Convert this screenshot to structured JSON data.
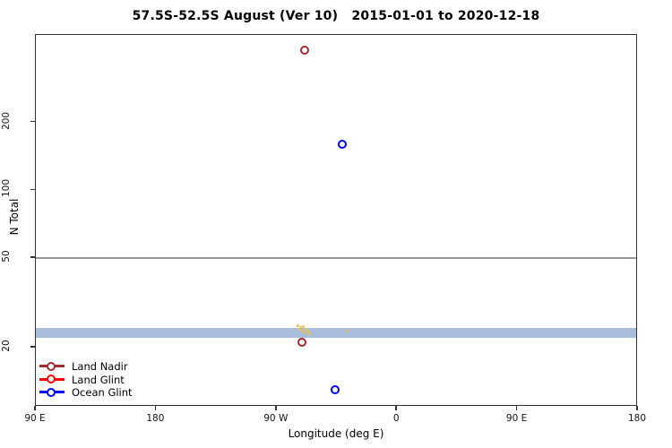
{
  "title": "57.5S-52.5S August (Ver 10)   2015-01-01 to 2020-12-18",
  "legend": {
    "position": "bottom-left",
    "items": [
      {
        "label": "Land Nadir",
        "color": "#A52A2A",
        "marker": "open-circle"
      },
      {
        "label": "Land Glint",
        "color": "#FF0000",
        "marker": "open-circle"
      },
      {
        "label": "Ocean Glint",
        "color": "#0000FF",
        "marker": "open-circle"
      }
    ]
  },
  "chart_data": {
    "type": "scatter",
    "title": "57.5S-52.5S August (Ver 10)   2015-01-01 to 2020-12-18",
    "xlabel": "Longitude (deg E)",
    "ylabel": "N Total",
    "x_axis": {
      "unit": "degrees east, wrapped axis spanning 450 deg",
      "ticks": [
        {
          "deg": 90,
          "label": "90 E"
        },
        {
          "deg": 180,
          "label": "180"
        },
        {
          "deg": 270,
          "label": "90 W"
        },
        {
          "deg": 360,
          "label": "0"
        },
        {
          "deg": 450,
          "label": "90 E"
        },
        {
          "deg": 540,
          "label": "180"
        }
      ],
      "deg_min": 90,
      "deg_max": 540
    },
    "y_axis": {
      "scale": "log10",
      "ticks": [
        20,
        50,
        100,
        200
      ],
      "range": [
        10.9,
        490
      ],
      "grid": false
    },
    "reference_line": {
      "n": 50,
      "color": "#999999"
    },
    "band": {
      "n_from": 22,
      "n_to": 24.5,
      "color": "#A9BEDC"
    },
    "series": [
      {
        "name": "Land Nadir",
        "color": "#A52A2A",
        "marker": "open-circle",
        "points": [
          {
            "lon": -69,
            "n": 420
          },
          {
            "lon": -71,
            "n": 21
          }
        ]
      },
      {
        "name": "Land Glint",
        "color": "#FF0000",
        "marker": "open-circle",
        "points": []
      },
      {
        "name": "Ocean Glint",
        "color": "#0000FF",
        "marker": "open-circle",
        "points": [
          {
            "lon": -41,
            "n": 160
          },
          {
            "lon": -46.5,
            "n": 13
          }
        ]
      },
      {
        "name": "unlabeled_yellow_points",
        "color": "#E8C25A",
        "marker": "dot",
        "points": [
          {
            "lon": -74.4,
            "n": 24.9
          },
          {
            "lon": -72.4,
            "n": 24.5
          },
          {
            "lon": -70.4,
            "n": 24.7
          },
          {
            "lon": -73.1,
            "n": 24.0
          },
          {
            "lon": -71.1,
            "n": 23.7
          },
          {
            "lon": -68.4,
            "n": 24.2
          },
          {
            "lon": -69.1,
            "n": 23.2
          },
          {
            "lon": -66.4,
            "n": 23.7
          },
          {
            "lon": -65.1,
            "n": 23.0
          },
          {
            "lon": -37.0,
            "n": 23.6
          }
        ]
      }
    ]
  }
}
